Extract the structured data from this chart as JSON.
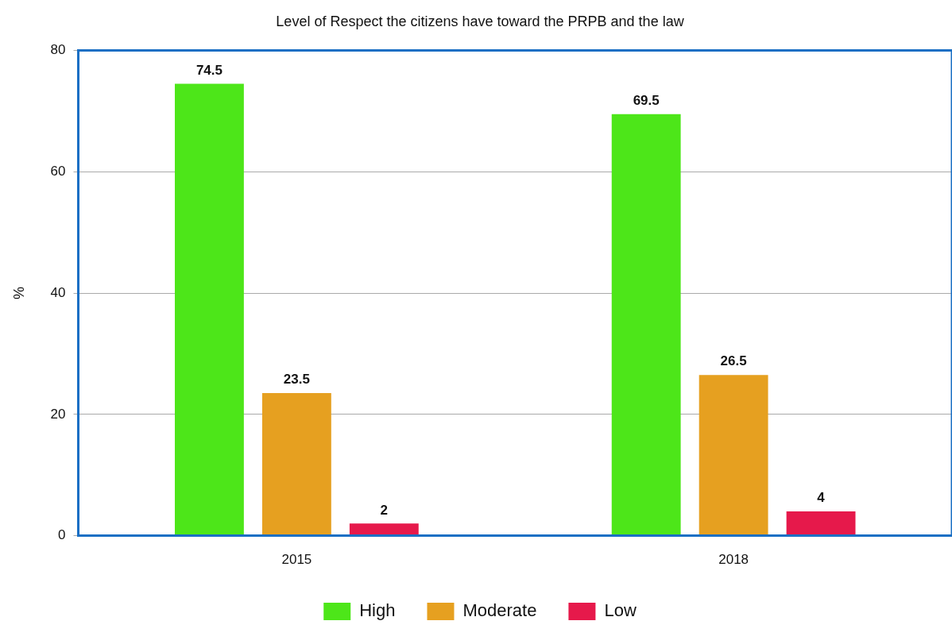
{
  "chart_data": {
    "type": "bar",
    "title": "Level of Respect the citizens have toward the PRPB and the law",
    "ylabel": "%",
    "categories": [
      "2015",
      "2018"
    ],
    "series": [
      {
        "name": "High",
        "color": "#4de619",
        "values": [
          74.5,
          69.5
        ]
      },
      {
        "name": "Moderate",
        "color": "#e6a020",
        "values": [
          23.5,
          26.5
        ]
      },
      {
        "name": "Low",
        "color": "#e6194b",
        "values": [
          2,
          4
        ]
      }
    ],
    "ylim": [
      0,
      80
    ],
    "yticks": [
      0,
      20,
      40,
      60,
      80
    ],
    "grid": "y",
    "legend": "bottom",
    "data_labels": true
  }
}
